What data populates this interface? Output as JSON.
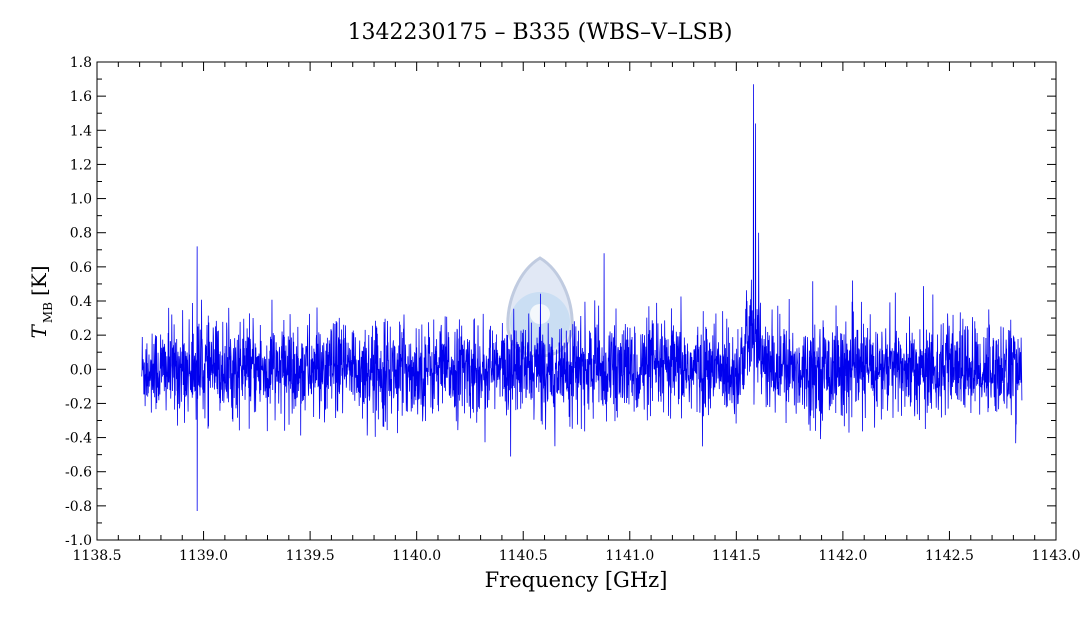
{
  "chart_data": {
    "type": "line",
    "title": "1342230175 – B335 (WBS–V–LSB)",
    "xlabel": "Frequency [GHz]",
    "ylabel_main": "T",
    "ylabel_sub": "MB",
    "ylabel_unit": "[K]",
    "xlim": [
      1138.5,
      1143.0
    ],
    "ylim": [
      -1.0,
      1.8
    ],
    "x_ticks": [
      "1138.5",
      "1139.0",
      "1139.5",
      "1140.0",
      "1140.5",
      "1141.0",
      "1141.5",
      "1142.0",
      "1142.5",
      "1143.0"
    ],
    "y_ticks": [
      "-1.0",
      "-0.8",
      "-0.6",
      "-0.4",
      "-0.2",
      "0.0",
      "0.2",
      "0.4",
      "0.6",
      "0.8",
      "1.0",
      "1.2",
      "1.4",
      "1.6",
      "1.8"
    ],
    "grid": false,
    "series": [
      {
        "color": "#0000ee",
        "x_range": [
          1138.71,
          1142.84
        ],
        "noise_rms": 0.16,
        "features": [
          {
            "x": 1141.58,
            "peak": 1.67
          },
          {
            "x": 1141.59,
            "peak": 1.44
          },
          {
            "x": 1141.605,
            "peak": 0.8
          },
          {
            "x": 1141.55,
            "peak": 0.4
          },
          {
            "x": 1138.97,
            "peak": 0.72
          },
          {
            "x": 1138.97,
            "peak": -0.83
          },
          {
            "x": 1140.88,
            "peak": 0.68
          }
        ]
      }
    ]
  },
  "watermark": {
    "icon": "logo-watermark-icon"
  }
}
